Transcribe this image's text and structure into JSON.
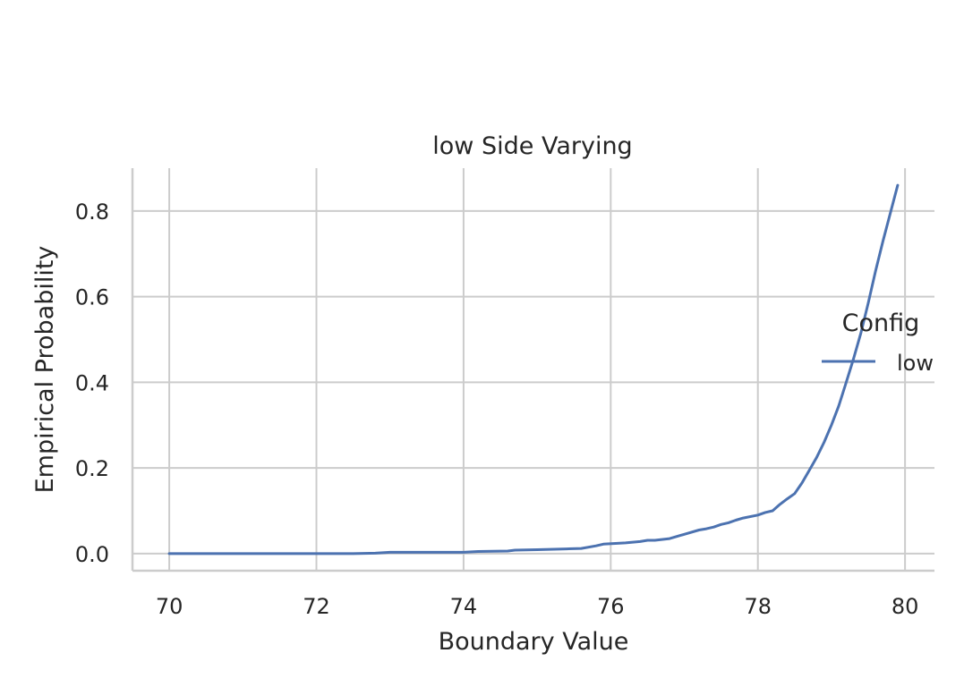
{
  "chart_data": {
    "type": "line",
    "title": "low Side Varying",
    "xlabel": "Boundary Value",
    "ylabel": "Empirical Probability",
    "xlim": [
      69.5,
      80.4
    ],
    "ylim": [
      -0.04,
      0.9
    ],
    "x_ticks": [
      70,
      72,
      74,
      76,
      78,
      80
    ],
    "y_ticks": [
      0.0,
      0.2,
      0.4,
      0.6,
      0.8
    ],
    "x_tick_labels": [
      "70",
      "72",
      "74",
      "76",
      "78",
      "80"
    ],
    "y_tick_labels": [
      "0.0",
      "0.2",
      "0.4",
      "0.6",
      "0.8"
    ],
    "grid": true,
    "legend": {
      "title": "Config",
      "placement": "right",
      "entries": [
        "low"
      ]
    },
    "series": [
      {
        "name": "low",
        "color": "#4c72b0",
        "x": [
          70.0,
          70.5,
          71.0,
          71.5,
          72.0,
          72.4,
          72.5,
          72.8,
          73.0,
          73.5,
          74.0,
          74.2,
          74.6,
          74.7,
          75.0,
          75.4,
          75.6,
          75.8,
          75.9,
          76.2,
          76.4,
          76.5,
          76.6,
          76.8,
          77.0,
          77.2,
          77.3,
          77.4,
          77.5,
          77.6,
          77.7,
          77.8,
          78.0,
          78.1,
          78.2,
          78.3,
          78.4,
          78.5,
          78.6,
          78.7,
          78.8,
          78.9,
          79.0,
          79.1,
          79.2,
          79.3,
          79.4,
          79.5,
          79.6,
          79.7,
          79.9
        ],
        "y": [
          0.0,
          0.0,
          0.0,
          0.0,
          0.0,
          0.0,
          0.0,
          0.001,
          0.003,
          0.003,
          0.003,
          0.005,
          0.006,
          0.008,
          0.009,
          0.011,
          0.012,
          0.018,
          0.022,
          0.025,
          0.028,
          0.031,
          0.031,
          0.035,
          0.045,
          0.055,
          0.058,
          0.062,
          0.068,
          0.072,
          0.078,
          0.083,
          0.09,
          0.096,
          0.1,
          0.115,
          0.128,
          0.14,
          0.165,
          0.195,
          0.225,
          0.26,
          0.3,
          0.345,
          0.4,
          0.455,
          0.515,
          0.585,
          0.66,
          0.73,
          0.86
        ]
      }
    ]
  }
}
